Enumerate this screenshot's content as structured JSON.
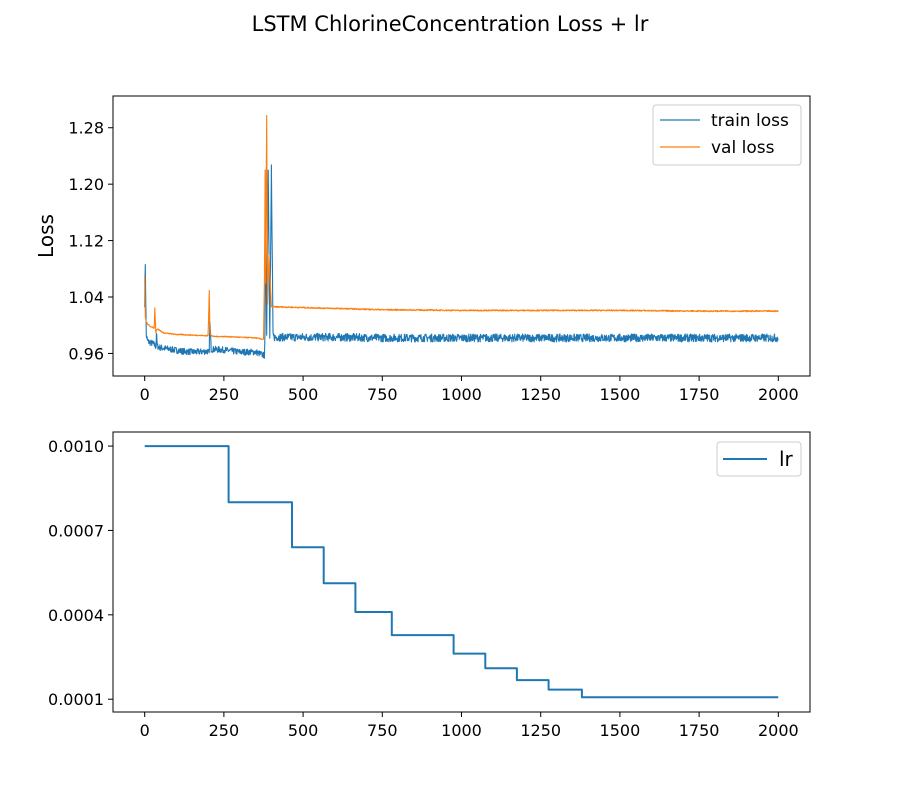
{
  "figure": {
    "title": "LSTM ChlorineConcentration Loss + lr"
  },
  "colors": {
    "train": "#1f77b4",
    "val": "#ff7f0e",
    "lr": "#1f77b4"
  },
  "chart_data": [
    {
      "type": "line",
      "title": "",
      "xlabel": "",
      "ylabel": "Loss",
      "xlim": [
        -100,
        2100
      ],
      "ylim": [
        0.928,
        1.325
      ],
      "xticks": [
        0,
        250,
        500,
        750,
        1000,
        1250,
        1500,
        1750,
        2000
      ],
      "xtick_labels": [
        "0",
        "250",
        "500",
        "750",
        "1000",
        "1250",
        "1500",
        "1750",
        "2000"
      ],
      "yticks": [
        0.96,
        1.04,
        1.12,
        1.2,
        1.28
      ],
      "ytick_labels": [
        "0.96",
        "1.04",
        "1.12",
        "1.20",
        "1.28"
      ],
      "legend": "top-right",
      "grid": false,
      "series": [
        {
          "name": "train loss",
          "x": [
            0,
            2,
            5,
            10,
            20,
            30,
            36,
            37,
            40,
            50,
            80,
            120,
            160,
            200,
            204,
            205,
            210,
            250,
            300,
            350,
            378,
            380,
            382,
            385,
            390,
            395,
            400,
            405,
            410,
            450,
            500,
            600,
            750,
            1000,
            1250,
            1500,
            1750,
            2000
          ],
          "y": [
            1.03,
            1.088,
            0.985,
            0.977,
            0.975,
            0.973,
            0.969,
            0.99,
            0.97,
            0.968,
            0.966,
            0.963,
            0.962,
            0.963,
            0.958,
            1.01,
            0.966,
            0.965,
            0.962,
            0.962,
            0.957,
            1.0,
            1.19,
            0.99,
            1.22,
            0.98,
            1.225,
            0.985,
            0.983,
            0.983,
            0.983,
            0.983,
            0.982,
            0.982,
            0.982,
            0.982,
            0.982,
            0.982
          ],
          "noise": 0.0045
        },
        {
          "name": "val loss",
          "x": [
            0,
            2,
            5,
            10,
            20,
            30,
            32,
            35,
            40,
            60,
            100,
            150,
            200,
            204,
            206,
            210,
            220,
            250,
            300,
            350,
            375,
            378,
            380,
            382,
            385,
            388,
            392,
            400,
            420,
            500,
            750,
            1000,
            1250,
            1500,
            1750,
            2000
          ],
          "y": [
            1.07,
            1.012,
            1.005,
            1.001,
            0.998,
            0.996,
            1.025,
            0.99,
            0.995,
            0.989,
            0.987,
            0.986,
            0.985,
            1.05,
            0.99,
            0.985,
            0.984,
            0.984,
            0.983,
            0.982,
            0.98,
            1.063,
            1.22,
            1.06,
            1.297,
            1.03,
            1.1,
            1.026,
            1.026,
            1.025,
            1.022,
            1.021,
            1.021,
            1.021,
            1.02,
            1.02
          ],
          "noise": 0.0007
        }
      ]
    },
    {
      "type": "line",
      "title": "",
      "xlabel": "",
      "ylabel": "",
      "xlim": [
        -100,
        2100
      ],
      "ylim": [
        5.45e-05,
        0.00105
      ],
      "xticks": [
        0,
        250,
        500,
        750,
        1000,
        1250,
        1500,
        1750,
        2000
      ],
      "xtick_labels": [
        "0",
        "250",
        "500",
        "750",
        "1000",
        "1250",
        "1500",
        "1750",
        "2000"
      ],
      "yticks": [
        0.0001,
        0.0004,
        0.0007,
        0.001
      ],
      "ytick_labels": [
        "0.0001",
        "0.0004",
        "0.0007",
        "0.0010"
      ],
      "legend": "top-right",
      "grid": false,
      "series": [
        {
          "name": "lr",
          "step": true,
          "x": [
            0,
            265,
            465,
            565,
            665,
            780,
            975,
            1075,
            1175,
            1275,
            1380,
            2000
          ],
          "y": [
            0.001,
            0.0008,
            0.00064,
            0.000512,
            0.00041,
            0.000328,
            0.000262,
            0.00021,
            0.000168,
            0.000134,
            0.000107,
            0.000107
          ]
        }
      ]
    }
  ]
}
